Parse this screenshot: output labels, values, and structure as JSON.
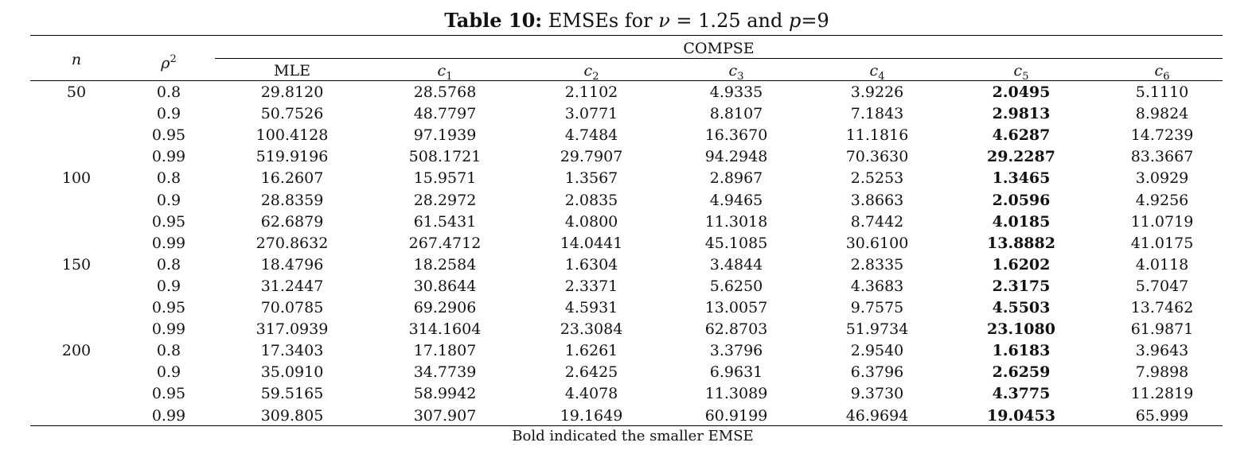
{
  "caption": {
    "label": "Table 10:",
    "text_before": " EMSEs for ",
    "nu_symbol": "ν",
    "nu_eq": " = 1.25 and ",
    "p_symbol": "p",
    "p_eq": "=9"
  },
  "header": {
    "n": "n",
    "rho": "ρ",
    "rho_sup": "2",
    "group": "COMPSE",
    "mle": "MLE",
    "c_symbol": "c",
    "c_subs": [
      "1",
      "2",
      "3",
      "4",
      "5",
      "6"
    ]
  },
  "rows": [
    {
      "n": "50",
      "rho2": "0.8",
      "values": [
        "29.8120",
        "28.5768",
        "2.1102",
        "4.9335",
        "3.9226",
        "2.0495",
        "5.1110"
      ]
    },
    {
      "n": "",
      "rho2": "0.9",
      "values": [
        "50.7526",
        "48.7797",
        "3.0771",
        "8.8107",
        "7.1843",
        "2.9813",
        "8.9824"
      ]
    },
    {
      "n": "",
      "rho2": "0.95",
      "values": [
        "100.4128",
        "97.1939",
        "4.7484",
        "16.3670",
        "11.1816",
        "4.6287",
        "14.7239"
      ]
    },
    {
      "n": "",
      "rho2": "0.99",
      "values": [
        "519.9196",
        "508.1721",
        "29.7907",
        "94.2948",
        "70.3630",
        "29.2287",
        "83.3667"
      ]
    },
    {
      "n": "100",
      "rho2": "0.8",
      "values": [
        "16.2607",
        "15.9571",
        "1.3567",
        "2.8967",
        "2.5253",
        "1.3465",
        "3.0929"
      ]
    },
    {
      "n": "",
      "rho2": "0.9",
      "values": [
        "28.8359",
        "28.2972",
        "2.0835",
        "4.9465",
        "3.8663",
        "2.0596",
        "4.9256"
      ]
    },
    {
      "n": "",
      "rho2": "0.95",
      "values": [
        "62.6879",
        "61.5431",
        "4.0800",
        "11.3018",
        "8.7442",
        "4.0185",
        "11.0719"
      ]
    },
    {
      "n": "",
      "rho2": "0.99",
      "values": [
        "270.8632",
        "267.4712",
        "14.0441",
        "45.1085",
        "30.6100",
        "13.8882",
        "41.0175"
      ]
    },
    {
      "n": "150",
      "rho2": "0.8",
      "values": [
        "18.4796",
        "18.2584",
        "1.6304",
        "3.4844",
        "2.8335",
        "1.6202",
        "4.0118"
      ]
    },
    {
      "n": "",
      "rho2": "0.9",
      "values": [
        "31.2447",
        "30.8644",
        "2.3371",
        "5.6250",
        "4.3683",
        "2.3175",
        "5.7047"
      ]
    },
    {
      "n": "",
      "rho2": "0.95",
      "values": [
        "70.0785",
        "69.2906",
        "4.5931",
        "13.0057",
        "9.7575",
        "4.5503",
        "13.7462"
      ]
    },
    {
      "n": "",
      "rho2": "0.99",
      "values": [
        "317.0939",
        "314.1604",
        "23.3084",
        "62.8703",
        "51.9734",
        "23.1080",
        "61.9871"
      ]
    },
    {
      "n": "200",
      "rho2": "0.8",
      "values": [
        "17.3403",
        "17.1807",
        "1.6261",
        "3.3796",
        "2.9540",
        "1.6183",
        "3.9643"
      ]
    },
    {
      "n": "",
      "rho2": "0.9",
      "values": [
        "35.0910",
        "34.7739",
        "2.6425",
        "6.9631",
        "6.3796",
        "2.6259",
        "7.9898"
      ]
    },
    {
      "n": "",
      "rho2": "0.95",
      "values": [
        "59.5165",
        "58.9942",
        "4.4078",
        "11.3089",
        "9.3730",
        "4.3775",
        "11.2819"
      ]
    },
    {
      "n": "",
      "rho2": "0.99",
      "values": [
        "309.805",
        "307.907",
        "19.1649",
        "60.9199",
        "46.9694",
        "19.0453",
        "65.999"
      ]
    }
  ],
  "bold_column_index": 5,
  "note": "Bold indicated the smaller EMSE"
}
